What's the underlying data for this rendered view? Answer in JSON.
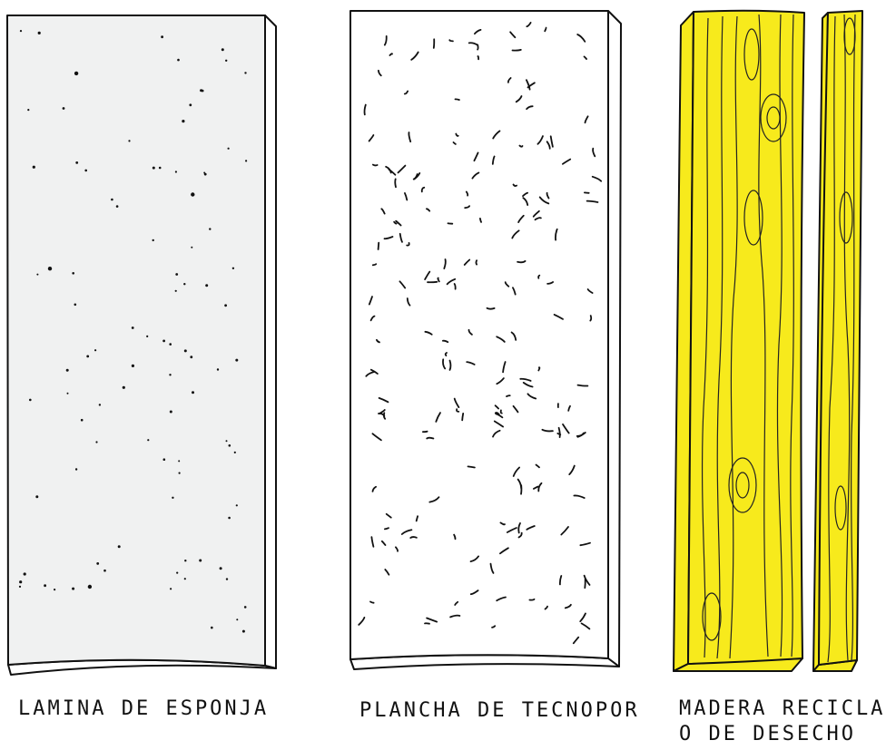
{
  "materials": [
    {
      "label": "LAMINA DE ESPONJA",
      "fill_color": "#f0f1f1"
    },
    {
      "label": "PLANCHA DE TECNOPOR",
      "fill_color": "#ffffff"
    },
    {
      "label_line1": "MADERA RECICLADA",
      "label_line2": "O DE DESECHO",
      "fill_color": "#f7ea1c"
    }
  ],
  "colors": {
    "outline": "#111111",
    "wood": "#f7ea1c",
    "sponge": "#f0f1f1",
    "foam": "#ffffff"
  },
  "icons": [
    "sponge-sheet-icon",
    "foam-board-icon",
    "wood-plank-icon",
    "thin-wood-plank-icon"
  ]
}
